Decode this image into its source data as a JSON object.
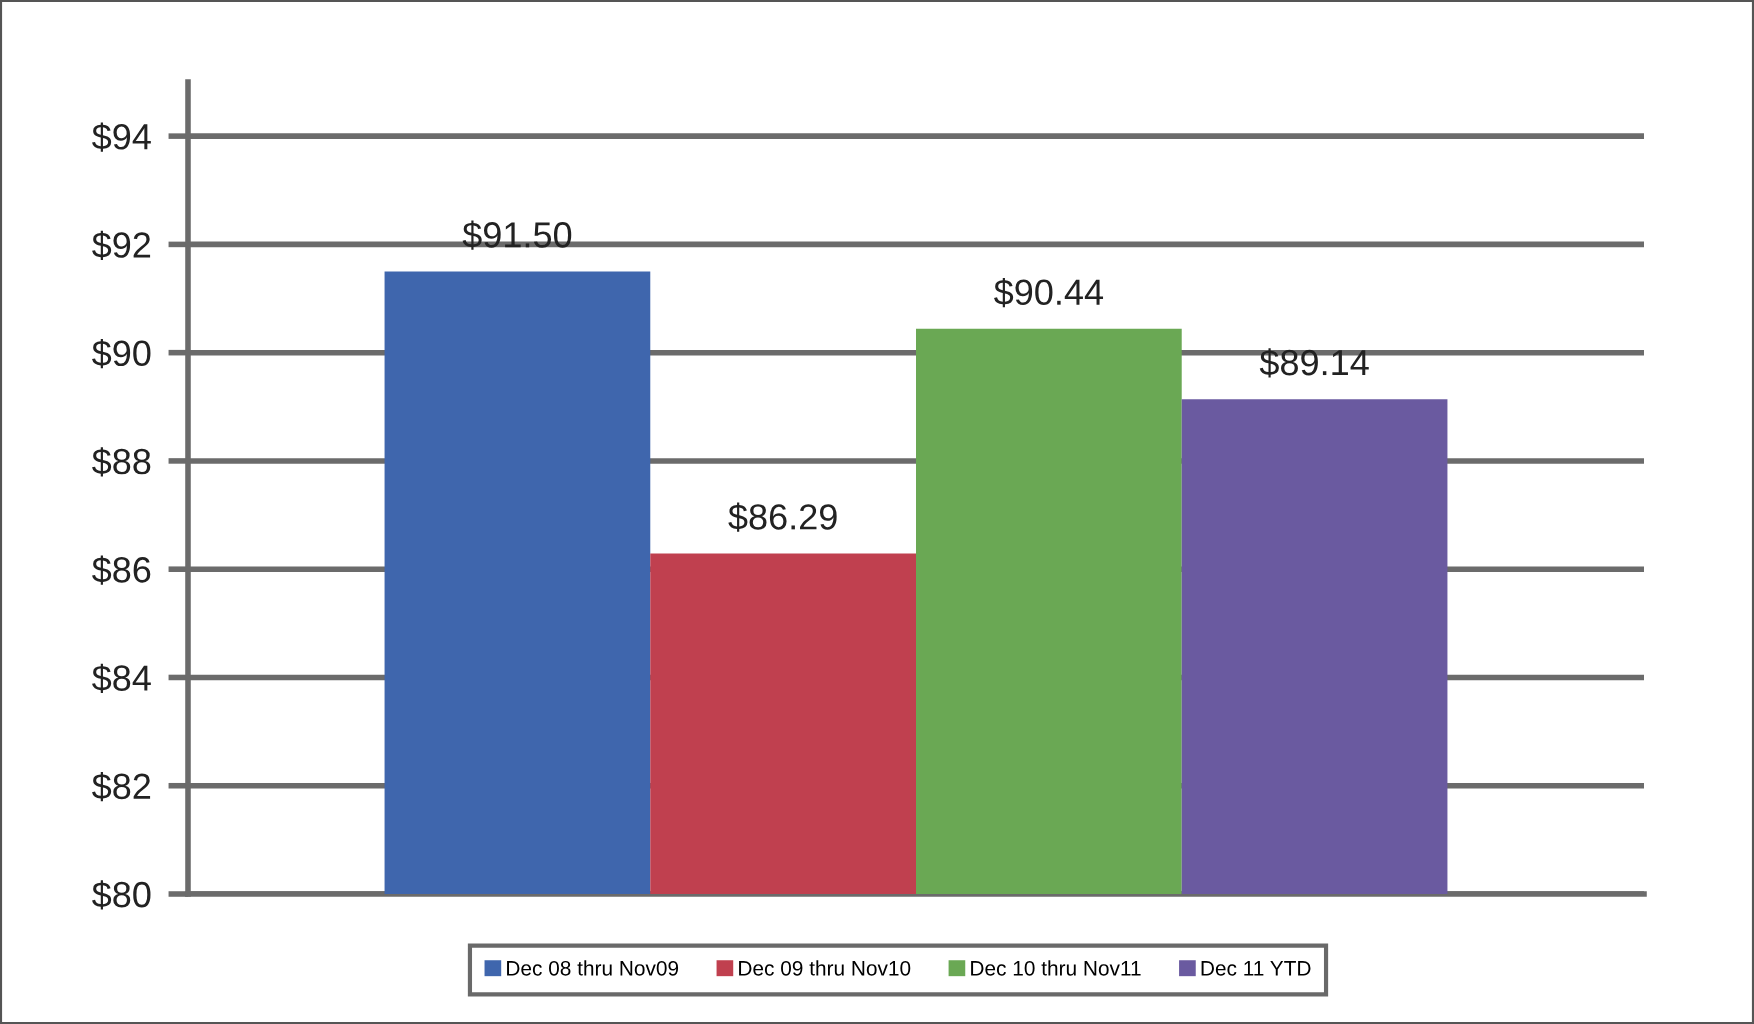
{
  "chart_data": {
    "type": "bar",
    "categories": [
      null
    ],
    "series": [
      {
        "name": "Dec 08 thru Nov09",
        "color": "#3f66ad",
        "values": [
          91.5
        ],
        "value_labels": [
          "$91.50"
        ]
      },
      {
        "name": "Dec 09 thru Nov10",
        "color": "#c0404f",
        "values": [
          86.29
        ],
        "value_labels": [
          "$86.29"
        ]
      },
      {
        "name": "Dec 10 thru Nov11",
        "color": "#6aa854",
        "values": [
          90.44
        ],
        "value_labels": [
          "$90.44"
        ]
      },
      {
        "name": "Dec 11 YTD",
        "color": "#6a5aa0",
        "values": [
          89.14
        ],
        "value_labels": [
          "$89.14"
        ]
      }
    ],
    "ylim": [
      80,
      95
    ],
    "yticks": [
      {
        "value": 80,
        "label": "$80"
      },
      {
        "value": 82,
        "label": "$82"
      },
      {
        "value": 84,
        "label": "$84"
      },
      {
        "value": 86,
        "label": "$86"
      },
      {
        "value": 88,
        "label": "$88"
      },
      {
        "value": 90,
        "label": "$90"
      },
      {
        "value": 92,
        "label": "$92"
      },
      {
        "value": 94,
        "label": "$94"
      }
    ],
    "grid": "y",
    "legend": "bottom",
    "tick_labels": "y"
  }
}
